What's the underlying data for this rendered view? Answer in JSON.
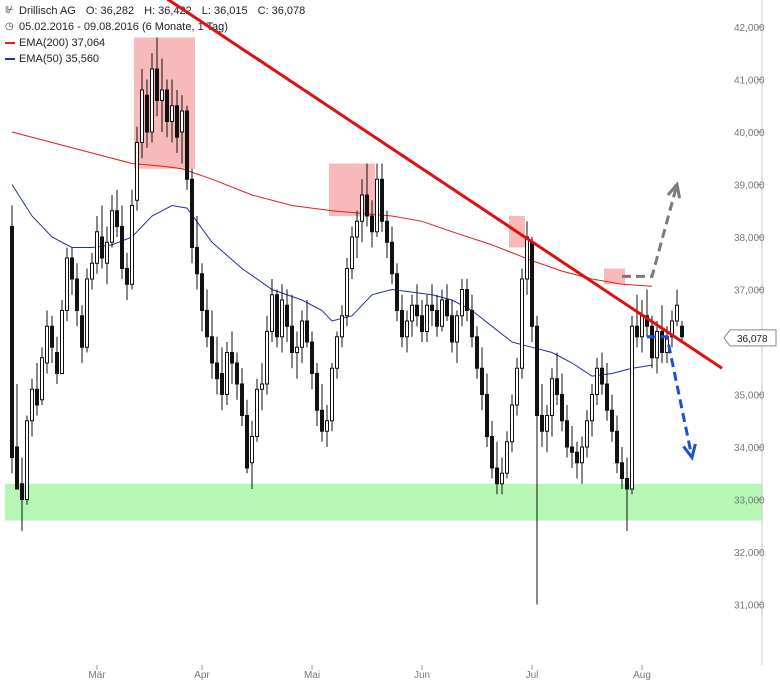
{
  "header": {
    "icon": "chart-logo-icon",
    "symbol_name": "Drillisch AG",
    "ohlc": [
      {
        "label": "O:",
        "value": "36,282"
      },
      {
        "label": "H:",
        "value": "36,422"
      },
      {
        "label": "L:",
        "value": "36,015"
      },
      {
        "label": "C:",
        "value": "36,078"
      }
    ],
    "clock_icon": "clock-icon",
    "period": "05.02.2016 - 09.08.2016 (6 Monate, 1 Tag)",
    "ema200": {
      "label": "EMA(200)",
      "value": "37,064",
      "color": "#e11d1d"
    },
    "ema50": {
      "label": "EMA(50)",
      "value": "35,560",
      "color": "#1f2fa8"
    }
  },
  "chart_data": {
    "type": "candlestick",
    "ylim": [
      30.8,
      42.2
    ],
    "y_ticks": [
      {
        "value": 31,
        "label": "31,000"
      },
      {
        "value": 32,
        "label": "32,000"
      },
      {
        "value": 33,
        "label": "33,000"
      },
      {
        "value": 34,
        "label": "34,000"
      },
      {
        "value": 35,
        "label": "35,000"
      },
      {
        "value": 36,
        "label": "36,000"
      },
      {
        "value": 37,
        "label": "37,000"
      },
      {
        "value": 38,
        "label": "38,000"
      },
      {
        "value": 39,
        "label": "39,000"
      },
      {
        "value": 40,
        "label": "40,000"
      },
      {
        "value": 41,
        "label": "41,000"
      },
      {
        "value": 42,
        "label": "42,000"
      }
    ],
    "x_ticks": [
      {
        "index": 17,
        "label": "Mär"
      },
      {
        "index": 38,
        "label": "Apr"
      },
      {
        "index": 60,
        "label": "Mai"
      },
      {
        "index": 82,
        "label": "Jun"
      },
      {
        "index": 104,
        "label": "Jul"
      },
      {
        "index": 126,
        "label": "Aug"
      }
    ],
    "candles": [
      [
        38.2,
        38.6,
        33.5,
        33.8
      ],
      [
        34.0,
        35.2,
        33.2,
        33.2
      ],
      [
        33.3,
        33.8,
        32.4,
        33.0
      ],
      [
        33.0,
        34.6,
        32.9,
        34.5
      ],
      [
        34.5,
        35.3,
        34.2,
        35.1
      ],
      [
        35.1,
        35.6,
        34.6,
        34.8
      ],
      [
        34.9,
        35.9,
        34.8,
        35.7
      ],
      [
        35.6,
        36.6,
        35.4,
        36.3
      ],
      [
        36.3,
        36.5,
        35.6,
        35.9
      ],
      [
        35.8,
        36.1,
        35.2,
        35.4
      ],
      [
        35.4,
        36.8,
        35.4,
        36.6
      ],
      [
        36.6,
        37.8,
        36.4,
        37.6
      ],
      [
        37.6,
        37.8,
        36.9,
        37.2
      ],
      [
        37.2,
        37.5,
        36.3,
        36.6
      ],
      [
        36.5,
        36.7,
        35.6,
        35.9
      ],
      [
        35.9,
        37.4,
        35.8,
        37.2
      ],
      [
        37.2,
        37.7,
        37.0,
        37.5
      ],
      [
        37.5,
        38.4,
        37.3,
        38.1
      ],
      [
        38.0,
        38.6,
        37.4,
        37.6
      ],
      [
        37.5,
        38.2,
        37.1,
        37.9
      ],
      [
        37.9,
        38.8,
        37.8,
        38.5
      ],
      [
        38.5,
        38.9,
        38.0,
        38.2
      ],
      [
        38.2,
        38.6,
        37.2,
        37.4
      ],
      [
        37.4,
        37.7,
        36.8,
        37.1
      ],
      [
        37.1,
        38.9,
        37.0,
        38.6
      ],
      [
        38.7,
        40.1,
        38.5,
        39.8
      ],
      [
        39.8,
        41.2,
        39.5,
        40.8
      ],
      [
        40.7,
        41.0,
        39.7,
        40.0
      ],
      [
        40.0,
        41.5,
        39.8,
        41.2
      ],
      [
        41.2,
        41.8,
        40.3,
        40.6
      ],
      [
        40.6,
        41.4,
        40.0,
        40.8
      ],
      [
        40.8,
        41.0,
        39.9,
        40.2
      ],
      [
        40.2,
        41.0,
        39.8,
        40.5
      ],
      [
        40.5,
        40.8,
        39.6,
        39.9
      ],
      [
        40.0,
        40.7,
        39.4,
        40.4
      ],
      [
        40.4,
        40.5,
        38.9,
        39.1
      ],
      [
        39.1,
        39.3,
        37.5,
        37.8
      ],
      [
        37.8,
        38.4,
        37.0,
        37.3
      ],
      [
        37.3,
        37.5,
        36.2,
        36.6
      ],
      [
        36.6,
        37.0,
        35.9,
        36.1
      ],
      [
        36.1,
        36.6,
        35.3,
        35.6
      ],
      [
        35.6,
        36.1,
        35.0,
        35.3
      ],
      [
        35.4,
        35.9,
        34.7,
        35.0
      ],
      [
        35.0,
        36.0,
        34.8,
        35.8
      ],
      [
        35.8,
        36.2,
        35.2,
        35.6
      ],
      [
        35.6,
        35.8,
        34.9,
        35.2
      ],
      [
        35.2,
        35.5,
        34.4,
        34.6
      ],
      [
        34.6,
        34.9,
        33.5,
        33.6
      ],
      [
        33.7,
        34.5,
        33.2,
        34.2
      ],
      [
        34.2,
        35.3,
        34.1,
        35.1
      ],
      [
        35.1,
        35.6,
        34.7,
        35.2
      ],
      [
        35.2,
        36.5,
        35.0,
        36.2
      ],
      [
        36.2,
        37.2,
        36.0,
        36.9
      ],
      [
        36.9,
        37.0,
        35.9,
        36.1
      ],
      [
        36.1,
        37.1,
        35.8,
        36.8
      ],
      [
        36.7,
        37.0,
        36.0,
        36.3
      ],
      [
        36.3,
        36.9,
        35.5,
        35.8
      ],
      [
        35.8,
        36.2,
        35.3,
        35.9
      ],
      [
        35.9,
        36.6,
        35.6,
        36.4
      ],
      [
        36.4,
        36.8,
        35.9,
        36.0
      ],
      [
        36.0,
        36.2,
        35.1,
        35.4
      ],
      [
        35.4,
        35.6,
        34.4,
        34.7
      ],
      [
        34.7,
        35.2,
        34.1,
        34.3
      ],
      [
        34.3,
        34.8,
        34.0,
        34.5
      ],
      [
        34.5,
        35.6,
        34.3,
        35.5
      ],
      [
        35.5,
        36.2,
        35.3,
        36.1
      ],
      [
        36.1,
        36.7,
        35.9,
        36.5
      ],
      [
        36.5,
        37.6,
        36.3,
        37.4
      ],
      [
        37.4,
        38.2,
        37.2,
        38.0
      ],
      [
        38.0,
        38.5,
        37.6,
        38.3
      ],
      [
        38.3,
        39.1,
        37.9,
        38.8
      ],
      [
        38.8,
        39.4,
        38.2,
        38.4
      ],
      [
        38.4,
        38.7,
        37.8,
        38.1
      ],
      [
        38.1,
        39.4,
        38.0,
        39.1
      ],
      [
        39.1,
        39.4,
        38.1,
        38.3
      ],
      [
        38.3,
        38.5,
        37.6,
        37.9
      ],
      [
        37.9,
        38.2,
        37.1,
        37.3
      ],
      [
        37.3,
        37.5,
        36.4,
        36.6
      ],
      [
        36.6,
        36.9,
        35.9,
        36.1
      ],
      [
        36.1,
        36.6,
        35.8,
        36.4
      ],
      [
        36.4,
        36.9,
        36.1,
        36.7
      ],
      [
        36.7,
        37.1,
        36.3,
        36.5
      ],
      [
        36.5,
        36.8,
        36.0,
        36.2
      ],
      [
        36.2,
        36.9,
        36.0,
        36.7
      ],
      [
        36.7,
        37.1,
        36.3,
        36.6
      ],
      [
        36.6,
        36.9,
        36.1,
        36.3
      ],
      [
        36.3,
        37.0,
        36.2,
        36.8
      ],
      [
        36.8,
        37.1,
        36.4,
        36.5
      ],
      [
        36.5,
        36.8,
        35.8,
        36.0
      ],
      [
        36.0,
        36.6,
        35.6,
        36.5
      ],
      [
        36.5,
        37.2,
        36.3,
        37.0
      ],
      [
        37.0,
        37.2,
        36.4,
        36.6
      ],
      [
        36.6,
        36.9,
        35.9,
        36.1
      ],
      [
        36.1,
        36.3,
        35.3,
        35.5
      ],
      [
        35.5,
        35.9,
        34.7,
        35.0
      ],
      [
        35.0,
        35.4,
        34.0,
        34.2
      ],
      [
        34.2,
        34.5,
        33.4,
        33.6
      ],
      [
        33.6,
        34.1,
        33.1,
        33.3
      ],
      [
        33.3,
        33.8,
        33.1,
        33.5
      ],
      [
        33.5,
        34.3,
        33.4,
        34.1
      ],
      [
        34.1,
        35.0,
        33.9,
        34.8
      ],
      [
        34.8,
        35.7,
        34.6,
        35.5
      ],
      [
        35.5,
        37.4,
        35.3,
        37.2
      ],
      [
        37.2,
        38.3,
        36.9,
        38.0
      ],
      [
        37.9,
        38.0,
        36.0,
        36.3
      ],
      [
        36.3,
        36.5,
        31.0,
        34.6
      ],
      [
        34.6,
        35.2,
        34.0,
        34.3
      ],
      [
        34.3,
        34.8,
        33.9,
        34.6
      ],
      [
        34.6,
        35.5,
        34.2,
        35.3
      ],
      [
        35.3,
        35.8,
        34.8,
        35.0
      ],
      [
        35.0,
        35.4,
        34.3,
        34.5
      ],
      [
        34.5,
        34.8,
        33.8,
        34.0
      ],
      [
        34.0,
        34.4,
        33.6,
        33.9
      ],
      [
        33.9,
        34.1,
        33.4,
        33.7
      ],
      [
        33.7,
        34.2,
        33.3,
        34.0
      ],
      [
        34.0,
        34.7,
        33.8,
        34.5
      ],
      [
        34.5,
        35.2,
        34.2,
        35.0
      ],
      [
        35.0,
        35.7,
        34.8,
        35.5
      ],
      [
        35.5,
        35.8,
        35.0,
        35.2
      ],
      [
        35.2,
        35.6,
        34.5,
        34.7
      ],
      [
        34.7,
        35.0,
        34.1,
        34.3
      ],
      [
        34.3,
        34.6,
        33.5,
        33.7
      ],
      [
        33.7,
        34.0,
        33.2,
        33.4
      ],
      [
        33.4,
        33.8,
        32.4,
        33.2
      ],
      [
        33.2,
        36.5,
        33.1,
        36.3
      ],
      [
        36.3,
        36.9,
        35.9,
        36.1
      ],
      [
        36.1,
        36.8,
        35.8,
        36.5
      ],
      [
        36.5,
        37.0,
        36.1,
        36.3
      ],
      [
        36.3,
        36.5,
        35.5,
        35.7
      ],
      [
        35.7,
        36.4,
        35.4,
        36.2
      ],
      [
        36.2,
        36.7,
        35.6,
        35.8
      ],
      [
        35.8,
        36.3,
        35.6,
        36.1
      ],
      [
        36.1,
        36.6,
        35.9,
        36.4
      ],
      [
        36.4,
        37.0,
        36.3,
        36.7
      ],
      [
        36.3,
        36.4,
        36.0,
        36.1
      ]
    ],
    "ema200": [
      [
        0,
        40.0
      ],
      [
        8,
        39.8
      ],
      [
        16,
        39.6
      ],
      [
        24,
        39.4
      ],
      [
        30,
        39.35
      ],
      [
        34,
        39.3
      ],
      [
        40,
        39.1
      ],
      [
        48,
        38.8
      ],
      [
        56,
        38.6
      ],
      [
        64,
        38.5
      ],
      [
        70,
        38.45
      ],
      [
        76,
        38.4
      ],
      [
        82,
        38.3
      ],
      [
        88,
        38.1
      ],
      [
        96,
        37.85
      ],
      [
        104,
        37.55
      ],
      [
        110,
        37.35
      ],
      [
        116,
        37.2
      ],
      [
        122,
        37.1
      ],
      [
        128,
        37.06
      ]
    ],
    "ema50": [
      [
        0,
        39.0
      ],
      [
        4,
        38.4
      ],
      [
        8,
        38.0
      ],
      [
        12,
        37.8
      ],
      [
        16,
        37.8
      ],
      [
        20,
        37.85
      ],
      [
        24,
        38.0
      ],
      [
        28,
        38.4
      ],
      [
        32,
        38.6
      ],
      [
        35,
        38.55
      ],
      [
        40,
        37.9
      ],
      [
        46,
        37.4
      ],
      [
        52,
        37.0
      ],
      [
        58,
        36.8
      ],
      [
        62,
        36.6
      ],
      [
        64,
        36.4
      ],
      [
        68,
        36.5
      ],
      [
        72,
        36.9
      ],
      [
        76,
        37.0
      ],
      [
        80,
        36.95
      ],
      [
        84,
        36.9
      ],
      [
        88,
        36.8
      ],
      [
        92,
        36.6
      ],
      [
        96,
        36.3
      ],
      [
        100,
        36.0
      ],
      [
        104,
        35.9
      ],
      [
        108,
        35.8
      ],
      [
        112,
        35.6
      ],
      [
        116,
        35.35
      ],
      [
        120,
        35.4
      ],
      [
        124,
        35.5
      ],
      [
        128,
        35.56
      ]
    ],
    "resistance_line": [
      [
        30,
        42.6
      ],
      [
        142,
        35.5
      ]
    ],
    "support_zone": [
      32.6,
      33.3
    ],
    "highlight_zones": [
      {
        "from": 25,
        "to": 36,
        "low": 39.3,
        "high": 41.8
      },
      {
        "from": 64,
        "to": 72,
        "low": 38.4,
        "high": 39.4
      },
      {
        "from": 100,
        "to": 102,
        "low": 37.8,
        "high": 38.4
      },
      {
        "from": 119,
        "to": 122,
        "low": 37.1,
        "high": 37.4
      }
    ],
    "projection_up": [
      [
        122,
        37.25
      ],
      [
        128,
        37.25
      ],
      [
        133,
        39.0
      ]
    ],
    "projection_down": [
      [
        127,
        36.1
      ],
      [
        131,
        36.1
      ],
      [
        136,
        33.8
      ]
    ],
    "current_price": {
      "value": 36.078,
      "label": "36,078"
    },
    "colors": {
      "candle": "#111111",
      "ema200": "#e11d1d",
      "ema50": "#1f2fa8",
      "resistance": "#e01010",
      "support_zone": "#b6f7b6",
      "highlight_zone": "#f7b9b9",
      "projection_up": "#7a7a7a",
      "projection_down": "#1d4fd6",
      "grid": "#d8d8d8",
      "axis_text": "#777777"
    }
  }
}
